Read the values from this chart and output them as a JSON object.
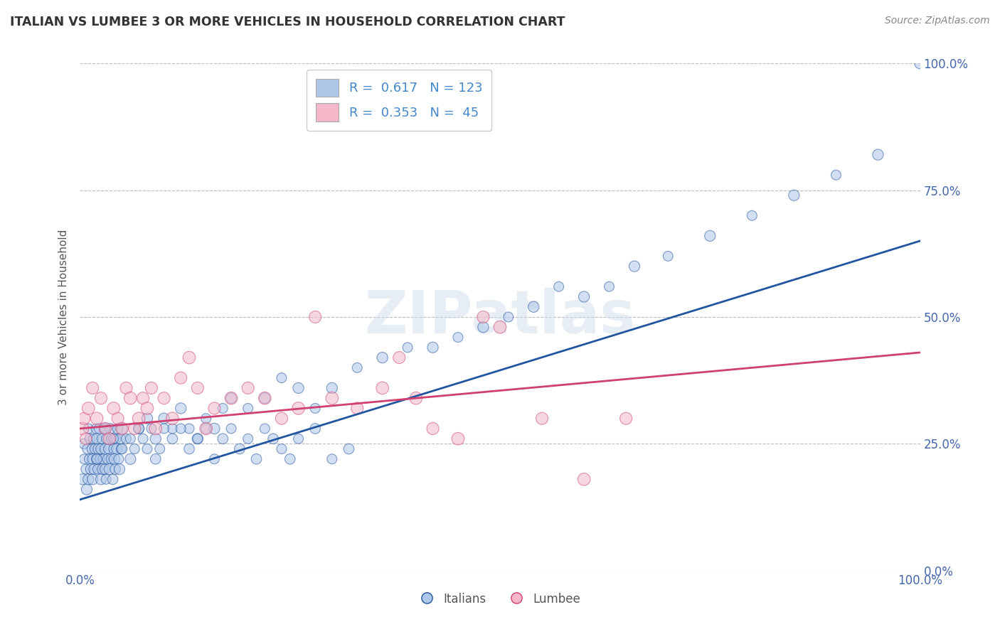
{
  "title": "ITALIAN VS LUMBEE 3 OR MORE VEHICLES IN HOUSEHOLD CORRELATION CHART",
  "source": "Source: ZipAtlas.com",
  "ylabel_label": "3 or more Vehicles in Household",
  "legend_italian": {
    "R": 0.617,
    "N": 123
  },
  "legend_lumbee": {
    "R": 0.353,
    "N": 45
  },
  "italian_color": "#aec6e8",
  "lumbee_color": "#f4b8c8",
  "italian_line_color": "#2255a0",
  "lumbee_line_color": "#d04070",
  "watermark": "ZIPatlas",
  "background_color": "#ffffff",
  "grid_color": "#bbbbbb",
  "italian_scatter_x": [
    0.3,
    0.5,
    0.5,
    0.7,
    0.8,
    0.9,
    1.0,
    1.0,
    1.1,
    1.2,
    1.3,
    1.4,
    1.5,
    1.5,
    1.6,
    1.7,
    1.8,
    1.9,
    2.0,
    2.0,
    2.1,
    2.2,
    2.3,
    2.4,
    2.5,
    2.5,
    2.6,
    2.7,
    2.8,
    2.9,
    3.0,
    3.0,
    3.1,
    3.2,
    3.3,
    3.4,
    3.5,
    3.6,
    3.7,
    3.8,
    3.9,
    4.0,
    4.1,
    4.2,
    4.3,
    4.4,
    4.5,
    4.6,
    4.7,
    4.8,
    4.9,
    5.0,
    5.5,
    6.0,
    6.5,
    7.0,
    7.5,
    8.0,
    8.5,
    9.0,
    9.5,
    10.0,
    11.0,
    12.0,
    13.0,
    14.0,
    15.0,
    16.0,
    17.0,
    18.0,
    20.0,
    22.0,
    24.0,
    26.0,
    28.0,
    30.0,
    33.0,
    36.0,
    39.0,
    42.0,
    45.0,
    48.0,
    51.0,
    54.0,
    57.0,
    60.0,
    63.0,
    66.0,
    70.0,
    75.0,
    80.0,
    85.0,
    90.0,
    95.0,
    100.0,
    2.0,
    3.0,
    4.0,
    5.0,
    6.0,
    7.0,
    8.0,
    9.0,
    10.0,
    11.0,
    12.0,
    13.0,
    14.0,
    15.0,
    16.0,
    17.0,
    18.0,
    19.0,
    20.0,
    21.0,
    22.0,
    23.0,
    24.0,
    25.0,
    26.0,
    28.0,
    30.0,
    32.0
  ],
  "italian_scatter_y": [
    18,
    22,
    25,
    20,
    16,
    24,
    28,
    18,
    22,
    26,
    20,
    24,
    18,
    22,
    26,
    20,
    24,
    28,
    22,
    26,
    20,
    24,
    28,
    22,
    18,
    24,
    26,
    20,
    22,
    28,
    24,
    20,
    18,
    26,
    22,
    24,
    20,
    28,
    22,
    26,
    18,
    24,
    22,
    20,
    26,
    24,
    28,
    22,
    20,
    26,
    24,
    28,
    26,
    22,
    24,
    28,
    26,
    30,
    28,
    26,
    24,
    30,
    28,
    32,
    28,
    26,
    30,
    28,
    32,
    34,
    32,
    34,
    38,
    36,
    32,
    36,
    40,
    42,
    44,
    44,
    46,
    48,
    50,
    52,
    56,
    54,
    56,
    60,
    62,
    66,
    70,
    74,
    78,
    82,
    100,
    22,
    28,
    26,
    24,
    26,
    28,
    24,
    22,
    28,
    26,
    28,
    24,
    26,
    28,
    22,
    26,
    28,
    24,
    26,
    22,
    28,
    26,
    24,
    22,
    26,
    28,
    22,
    24
  ],
  "italian_scatter_s": [
    120,
    100,
    110,
    100,
    120,
    110,
    100,
    120,
    100,
    110,
    120,
    100,
    120,
    110,
    100,
    120,
    110,
    100,
    120,
    110,
    100,
    120,
    110,
    100,
    120,
    110,
    100,
    120,
    110,
    100,
    120,
    110,
    100,
    120,
    110,
    100,
    120,
    110,
    100,
    120,
    110,
    100,
    120,
    110,
    100,
    120,
    110,
    100,
    120,
    110,
    100,
    120,
    100,
    120,
    100,
    120,
    100,
    120,
    100,
    120,
    100,
    120,
    100,
    120,
    100,
    120,
    100,
    120,
    100,
    120,
    100,
    120,
    100,
    120,
    100,
    120,
    100,
    120,
    100,
    120,
    100,
    120,
    100,
    120,
    100,
    120,
    100,
    120,
    100,
    120,
    100,
    120,
    100,
    120,
    120,
    100,
    110,
    100,
    110,
    100,
    110,
    100,
    110,
    100,
    110,
    100,
    110,
    100,
    110,
    100,
    110,
    100,
    110,
    100,
    110,
    100,
    110,
    100,
    110,
    100,
    110,
    100,
    110
  ],
  "lumbee_scatter_x": [
    0.3,
    0.5,
    0.7,
    1.0,
    1.5,
    2.0,
    2.5,
    3.0,
    3.5,
    4.0,
    4.5,
    5.0,
    5.5,
    6.0,
    6.5,
    7.0,
    7.5,
    8.0,
    8.5,
    9.0,
    10.0,
    11.0,
    12.0,
    13.0,
    14.0,
    15.0,
    16.0,
    18.0,
    20.0,
    22.0,
    24.0,
    26.0,
    28.0,
    30.0,
    33.0,
    36.0,
    38.0,
    40.0,
    42.0,
    45.0,
    48.0,
    50.0,
    55.0,
    60.0,
    65.0
  ],
  "lumbee_scatter_y": [
    28,
    30,
    26,
    32,
    36,
    30,
    34,
    28,
    26,
    32,
    30,
    28,
    36,
    34,
    28,
    30,
    34,
    32,
    36,
    28,
    34,
    30,
    38,
    42,
    36,
    28,
    32,
    34,
    36,
    34,
    30,
    32,
    50,
    34,
    32,
    36,
    42,
    34,
    28,
    26,
    50,
    48,
    30,
    18,
    30
  ],
  "lumbee_scatter_s": [
    160,
    150,
    140,
    160,
    150,
    160,
    150,
    160,
    150,
    160,
    150,
    160,
    150,
    160,
    150,
    160,
    150,
    160,
    150,
    160,
    150,
    160,
    150,
    160,
    150,
    160,
    150,
    160,
    150,
    160,
    150,
    160,
    150,
    160,
    150,
    160,
    150,
    160,
    150,
    160,
    150,
    160,
    150,
    160,
    150
  ],
  "italian_line_x": [
    0,
    100
  ],
  "italian_line_y": [
    14,
    65
  ],
  "lumbee_line_x": [
    0,
    100
  ],
  "lumbee_line_y": [
    28,
    43
  ],
  "xmin": 0,
  "xmax": 100,
  "ymin": 0,
  "ymax": 100,
  "ytick_vals": [
    0,
    25,
    50,
    75,
    100
  ],
  "ytick_labels": [
    "0.0%",
    "25.0%",
    "50.0%",
    "75.0%",
    "100.0%"
  ]
}
